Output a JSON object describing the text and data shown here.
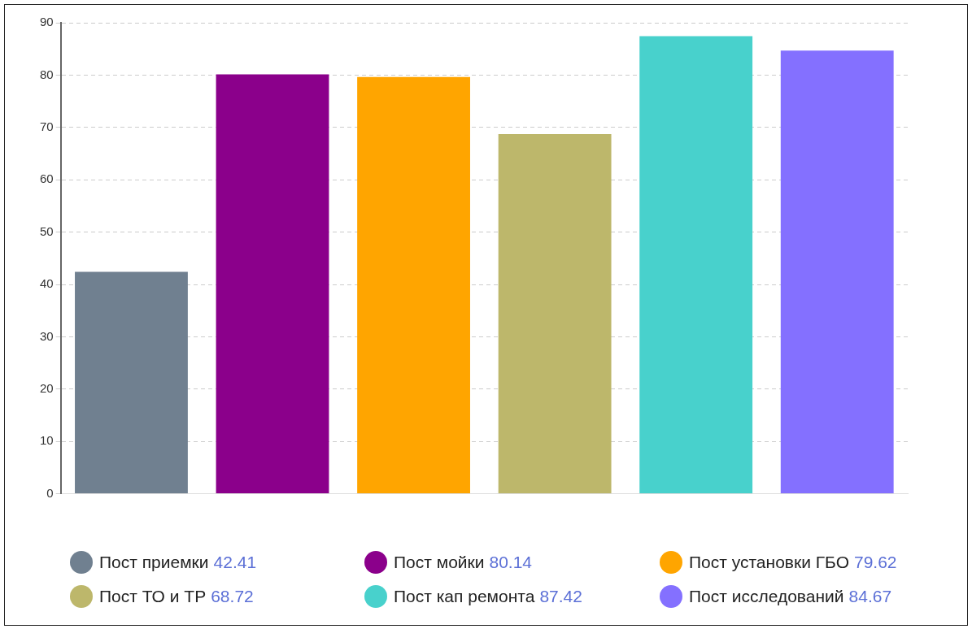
{
  "chart_data": {
    "type": "bar",
    "stacked": true,
    "categories": [
      null,
      null,
      null,
      null,
      null,
      null
    ],
    "series": [
      {
        "name": "Пост приемки 42.41",
        "color": "#708090",
        "values": [
          42.41,
          null,
          null,
          null,
          null,
          null
        ]
      },
      {
        "name": "Пост мойки 80.14",
        "color": "#8b008b",
        "values": [
          null,
          80.14,
          null,
          null,
          null,
          null
        ]
      },
      {
        "name": "Пост установки ГБО 79.62",
        "color": "#ffa500",
        "values": [
          null,
          null,
          79.62,
          null,
          null,
          null
        ]
      },
      {
        "name": "Пост ТО и ТР 68.72",
        "color": "#bdb76b",
        "values": [
          null,
          null,
          null,
          68.72,
          null,
          null
        ]
      },
      {
        "name": "Пост кап ремонта 87.42",
        "color": "#48d1cc",
        "values": [
          null,
          null,
          null,
          null,
          87.42,
          null
        ]
      },
      {
        "name": "Пост исследований 84.67",
        "color": "#8470ff",
        "values": [
          null,
          null,
          null,
          null,
          null,
          84.67
        ]
      }
    ],
    "ylim": [
      0,
      90
    ],
    "yticks": [
      0,
      10,
      20,
      30,
      40,
      50,
      60,
      70,
      80,
      90
    ],
    "grid": "y",
    "legend": "bottom"
  }
}
